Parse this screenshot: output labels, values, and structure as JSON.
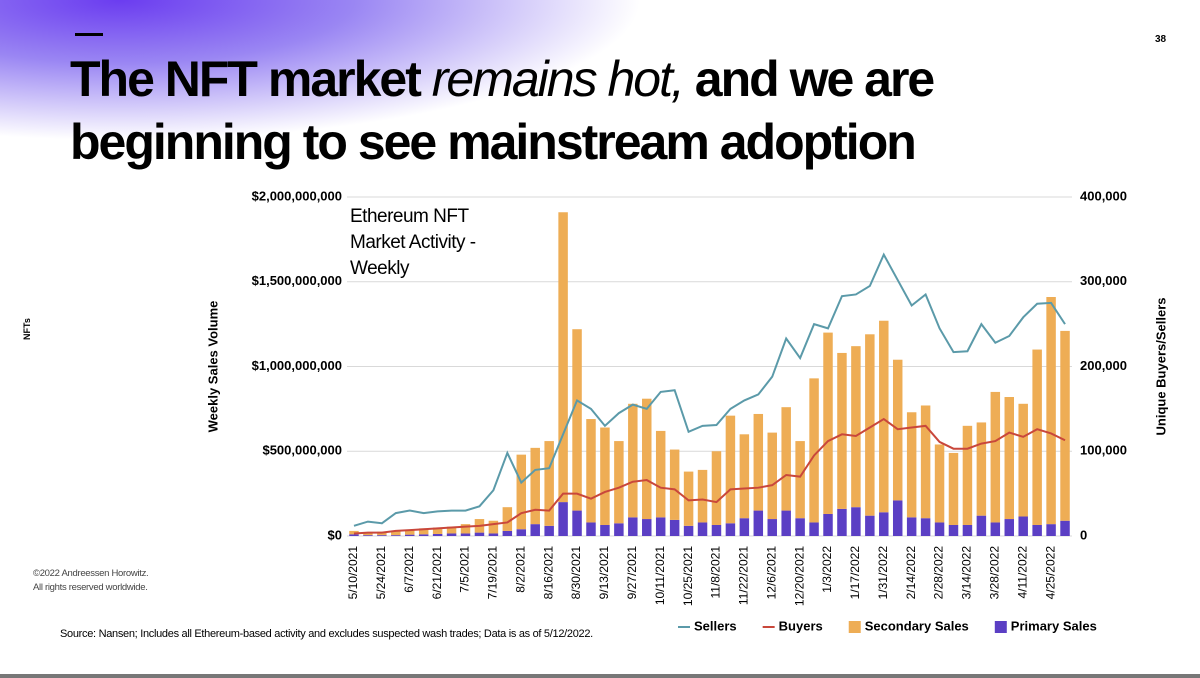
{
  "slide": {
    "page_number": "38",
    "section": "NFTs",
    "title": {
      "part1": "The NFT market",
      "part2": "remains hot,",
      "part3": "and we are beginning to see mainstream adoption"
    },
    "copyright": "©2022 Andreessen Horowitz.",
    "rights": "All rights reserved worldwide.",
    "source": "Source: Nansen; Includes all Ethereum-based activity and excludes suspected wash trades; Data is as of 5/12/2022."
  },
  "chart_data": {
    "type": "bar",
    "title": "Ethereum NFT Market Activity - Weekly",
    "y_label": "Weekly Sales Volume",
    "y2_label": "Unique Buyers/Sellers",
    "categories": [
      "5/10/2021",
      null,
      "5/24/2021",
      null,
      "6/7/2021",
      null,
      "6/21/2021",
      null,
      "7/5/2021",
      null,
      "7/19/2021",
      null,
      "8/2/2021",
      null,
      "8/16/2021",
      null,
      "8/30/2021",
      null,
      "9/13/2021",
      null,
      "9/27/2021",
      null,
      "10/11/2021",
      null,
      "10/25/2021",
      null,
      "11/8/2021",
      null,
      "11/22/2021",
      null,
      "12/6/2021",
      null,
      "12/20/2021",
      null,
      "1/3/2022",
      null,
      "1/17/2022",
      null,
      "1/31/2022",
      null,
      "2/14/2022",
      null,
      "2/28/2022",
      null,
      "3/14/2022",
      null,
      "3/28/2022",
      null,
      "4/11/2022",
      null,
      "4/25/2022",
      null
    ],
    "series": [
      {
        "name": "Sellers",
        "type": "line",
        "axis": "y2",
        "color": "#5b9aa9",
        "values": [
          12000,
          17000,
          15000,
          27000,
          30000,
          27000,
          29000,
          30000,
          30000,
          35000,
          54000,
          98000,
          63000,
          78000,
          80000,
          120000,
          160000,
          150000,
          130000,
          145000,
          155000,
          150000,
          170000,
          172000,
          123000,
          130000,
          131000,
          150000,
          160000,
          167000,
          188000,
          233000,
          210000,
          250000,
          245000,
          283000,
          285000,
          295000,
          332000,
          302000,
          272000,
          285000,
          245000,
          217000,
          218000,
          250000,
          228000,
          236000,
          258000,
          274000,
          275000,
          250000
        ]
      },
      {
        "name": "Buyers",
        "type": "line",
        "axis": "y2",
        "color": "#c9473b",
        "values": [
          3000,
          4000,
          4000,
          6000,
          7000,
          8000,
          9000,
          10000,
          11000,
          12000,
          14000,
          16000,
          27000,
          31000,
          30000,
          50000,
          50000,
          44000,
          52000,
          57000,
          64000,
          66000,
          57000,
          55000,
          42000,
          43000,
          40000,
          55000,
          56000,
          57000,
          60000,
          72000,
          70000,
          95000,
          112000,
          120000,
          118000,
          128000,
          138000,
          126000,
          128000,
          130000,
          111000,
          103000,
          103000,
          109000,
          112000,
          122000,
          117000,
          126000,
          121000,
          113000
        ]
      },
      {
        "name": "Secondary Sales",
        "type": "bar",
        "color": "#eead55",
        "values": [
          20000000,
          15000000,
          20000000,
          25000000,
          27000000,
          35000000,
          38000000,
          40000000,
          55000000,
          80000000,
          75000000,
          140000000,
          440000000,
          450000000,
          500000000,
          1710000000,
          1070000000,
          610000000,
          575000000,
          485000000,
          670000000,
          710000000,
          510000000,
          415000000,
          320000000,
          310000000,
          435000000,
          635000000,
          495000000,
          570000000,
          510000000,
          610000000,
          455000000,
          850000000,
          1070000000,
          920000000,
          950000000,
          1070000000,
          1130000000,
          830000000,
          620000000,
          665000000,
          460000000,
          425000000,
          585000000,
          550000000,
          770000000,
          720000000,
          665000000,
          1035000000,
          1340000000,
          1120000000
        ]
      },
      {
        "name": "Primary Sales",
        "type": "bar",
        "color": "#5b3fc4",
        "values": [
          10000000,
          5000000,
          5000000,
          5000000,
          8000000,
          10000000,
          12000000,
          15000000,
          15000000,
          20000000,
          15000000,
          30000000,
          40000000,
          70000000,
          60000000,
          200000000,
          150000000,
          80000000,
          65000000,
          75000000,
          110000000,
          100000000,
          110000000,
          95000000,
          60000000,
          80000000,
          65000000,
          75000000,
          105000000,
          150000000,
          100000000,
          150000000,
          105000000,
          80000000,
          130000000,
          160000000,
          170000000,
          120000000,
          140000000,
          210000000,
          110000000,
          105000000,
          80000000,
          65000000,
          65000000,
          120000000,
          80000000,
          100000000,
          115000000,
          65000000,
          70000000,
          90000000
        ]
      }
    ],
    "ylim": [
      0,
      2000000000
    ],
    "yticks": [
      {
        "value": 0,
        "label": "$0"
      },
      {
        "value": 500000000,
        "label": "$500,000,000"
      },
      {
        "value": 1000000000,
        "label": "$1,000,000,000"
      },
      {
        "value": 1500000000,
        "label": "$1,500,000,000"
      },
      {
        "value": 2000000000,
        "label": "$2,000,000,000"
      }
    ],
    "y2lim": [
      0,
      400000
    ],
    "y2ticks": [
      0,
      {
        "value": 100000,
        "label": "100,000"
      },
      {
        "value": 200000,
        "label": "200,000"
      },
      {
        "value": 300000,
        "label": "300,000"
      },
      {
        "value": 400000,
        "label": "400,000"
      }
    ],
    "grid": true,
    "legend": "bottom"
  }
}
